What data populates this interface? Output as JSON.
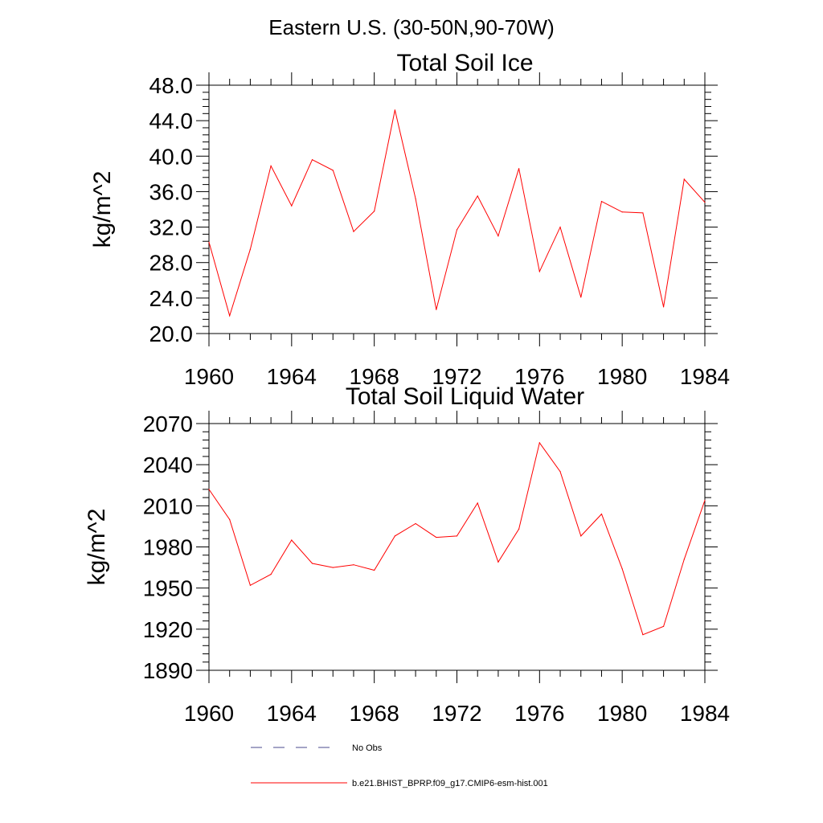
{
  "figure_title": "Eastern U.S. (30-50N,90-70W)",
  "legend": [
    {
      "label": "No Obs",
      "color": "#4a4a8c",
      "style": "dashed"
    },
    {
      "label": "b.e21.BHIST_BPRP.f09_g17.CMIP6-esm-hist.001",
      "color": "#ff0000",
      "style": "solid"
    }
  ],
  "chart_data": [
    {
      "type": "line",
      "title": "Total Soil Ice",
      "ylabel": "kg/m^2",
      "xlabel": "",
      "xlim": [
        1960,
        1984
      ],
      "ylim": [
        20,
        48
      ],
      "xticks": [
        "1960",
        "1964",
        "1968",
        "1972",
        "1976",
        "1980",
        "1984"
      ],
      "yticks": [
        "20.0",
        "24.0",
        "28.0",
        "32.0",
        "36.0",
        "40.0",
        "44.0",
        "48.0"
      ],
      "x": [
        1960,
        1961,
        1962,
        1963,
        1964,
        1965,
        1966,
        1967,
        1968,
        1969,
        1970,
        1971,
        1972,
        1973,
        1974,
        1975,
        1976,
        1977,
        1978,
        1979,
        1980,
        1981,
        1982,
        1983,
        1984
      ],
      "series": [
        {
          "color": "#ff0000",
          "values": [
            30.3,
            22.0,
            29.5,
            38.9,
            34.4,
            39.6,
            38.4,
            31.5,
            33.8,
            45.2,
            35.2,
            22.7,
            31.7,
            35.5,
            31.0,
            38.6,
            27.0,
            32.0,
            24.1,
            34.9,
            33.7,
            33.6,
            23.0,
            37.4,
            34.8
          ]
        }
      ]
    },
    {
      "type": "line",
      "title": "Total Soil Liquid Water",
      "ylabel": "kg/m^2",
      "xlabel": "",
      "xlim": [
        1960,
        1984
      ],
      "ylim": [
        1890,
        2070
      ],
      "xticks": [
        "1960",
        "1964",
        "1968",
        "1972",
        "1976",
        "1980",
        "1984"
      ],
      "yticks": [
        "1890",
        "1920",
        "1950",
        "1980",
        "2010",
        "2040",
        "2070"
      ],
      "x": [
        1960,
        1961,
        1962,
        1963,
        1964,
        1965,
        1966,
        1967,
        1968,
        1969,
        1970,
        1971,
        1972,
        1973,
        1974,
        1975,
        1976,
        1977,
        1978,
        1979,
        1980,
        1981,
        1982,
        1983,
        1984
      ],
      "series": [
        {
          "color": "#ff0000",
          "values": [
            2022,
            2000,
            1952,
            1960,
            1985,
            1968,
            1965,
            1967,
            1963,
            1988,
            1997,
            1987,
            1988,
            2012,
            1969,
            1993,
            2056,
            2035,
            1988,
            2004,
            1964,
            1916,
            1922,
            1971,
            2014
          ]
        }
      ]
    }
  ]
}
